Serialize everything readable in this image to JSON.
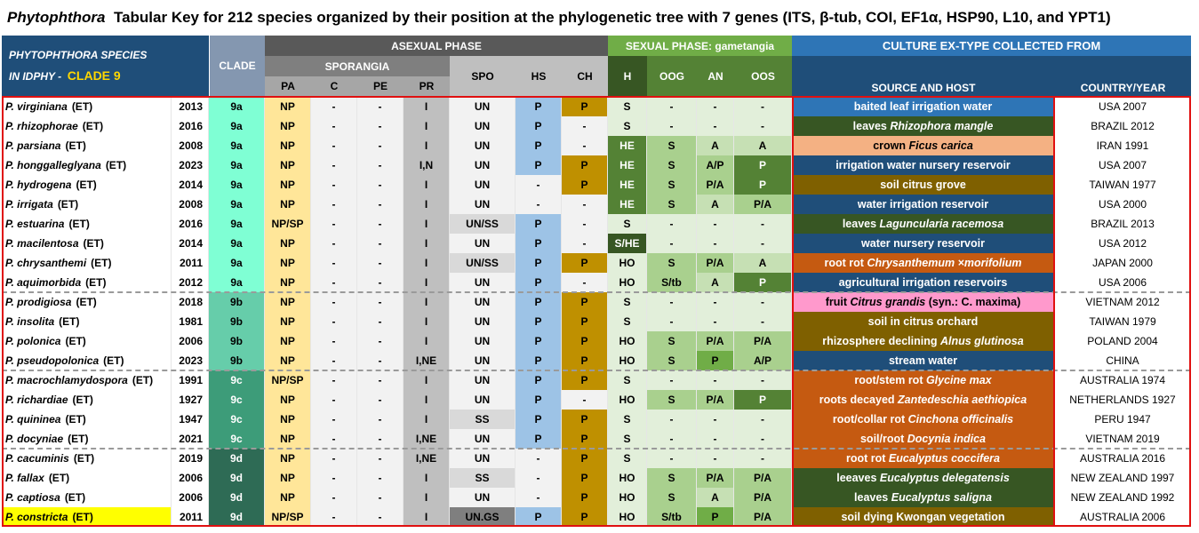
{
  "title": {
    "genus": "Phytophthora",
    "rest": "Tabular Key for 212 species organized by their position at the phylogenetic tree with 7 genes (ITS, β-tub, COI, EF1α, HSP90, L10, and YPT1)"
  },
  "headers": {
    "species_line1": "PHYTOPHTHORA  SPECIES",
    "species_line2a": "IN IDPHY -",
    "species_line2b": "CLADE 9",
    "clade": "CLADE",
    "asexual": "ASEXUAL PHASE",
    "sporangia": "SPORANGIA",
    "pa": "PA",
    "c": "C",
    "pe": "PE",
    "pr": "PR",
    "spo": "SPO",
    "hs": "HS",
    "ch": "CH",
    "sexual": "SEXUAL PHASE: gametangia",
    "h": "H",
    "oog": "OOG",
    "an": "AN",
    "oos": "OOS",
    "culture": "CULTURE EX-TYPE COLLECTED FROM",
    "source": "SOURCE AND HOST",
    "country": "COUNTRY/YEAR"
  },
  "colors": {
    "clade_9a": "#7fffd4",
    "clade_9b": "#66cdaa",
    "clade_9c": "#3cb371",
    "clade_9d": "#2e6b55",
    "hdr_blue": "#1f4e79",
    "hdr_green": "#8fbc5a",
    "hdr_dark": "#375623",
    "accent_red": "#e01010"
  },
  "rows": [
    {
      "sp": "P. virginiana",
      "et": "(ET)",
      "year": "2013",
      "clade": "9a",
      "pa": "NP",
      "c": "-",
      "pe": "-",
      "pr": "I",
      "spo": "UN",
      "hs": "P",
      "ch": "P",
      "h": "S",
      "oog": "-",
      "an": "-",
      "oos": "-",
      "src_a": "baited leaf irrigation water",
      "src_i": "",
      "src_b": "",
      "country": "USA 2007",
      "hl": false
    },
    {
      "sp": "P. rhizophorae",
      "et": "(ET)",
      "year": "2016",
      "clade": "9a",
      "pa": "NP",
      "c": "-",
      "pe": "-",
      "pr": "I",
      "spo": "UN",
      "hs": "P",
      "ch": "-",
      "h": "S",
      "oog": "-",
      "an": "-",
      "oos": "-",
      "src_a": "leaves ",
      "src_i": "Rhizophora mangle",
      "src_b": "",
      "country": "BRAZIL 2012",
      "hl": false
    },
    {
      "sp": "P. parsiana",
      "et": "(ET)",
      "year": "2008",
      "clade": "9a",
      "pa": "NP",
      "c": "-",
      "pe": "-",
      "pr": "I",
      "spo": "UN",
      "hs": "P",
      "ch": "-",
      "h": "HE",
      "oog": "S",
      "an": "A",
      "oos": "A",
      "src_a": "crown ",
      "src_i": "Ficus carica",
      "src_b": "",
      "country": "IRAN 1991",
      "hl": false
    },
    {
      "sp": "P. honggalleglyana",
      "et": "(ET)",
      "year": "2023",
      "clade": "9a",
      "pa": "NP",
      "c": "-",
      "pe": "-",
      "pr": "I,N",
      "spo": "UN",
      "hs": "P",
      "ch": "P",
      "h": "HE",
      "oog": "S",
      "an": "A/P",
      "oos": "P",
      "src_a": "irrigation water nursery reservoir",
      "src_i": "",
      "src_b": "",
      "country": "USA 2007",
      "hl": false
    },
    {
      "sp": "P. hydrogena",
      "et": "(ET)",
      "year": "2014",
      "clade": "9a",
      "pa": "NP",
      "c": "-",
      "pe": "-",
      "pr": "I",
      "spo": "UN",
      "hs": "-",
      "ch": "P",
      "h": "HE",
      "oog": "S",
      "an": "P/A",
      "oos": "P",
      "src_a": "soil citrus grove",
      "src_i": "",
      "src_b": "",
      "country": "TAIWAN 1977",
      "hl": false
    },
    {
      "sp": "P. irrigata",
      "et": "(ET)",
      "year": "2008",
      "clade": "9a",
      "pa": "NP",
      "c": "-",
      "pe": "-",
      "pr": "I",
      "spo": "UN",
      "hs": "-",
      "ch": "-",
      "h": "HE",
      "oog": "S",
      "an": "A",
      "oos": "P/A",
      "src_a": "water irrigation reservoir",
      "src_i": "",
      "src_b": "",
      "country": "USA 2000",
      "hl": false
    },
    {
      "sp": "P. estuarina",
      "et": "(ET)",
      "year": "2016",
      "clade": "9a",
      "pa": "NP/SP",
      "c": "-",
      "pe": "-",
      "pr": "I",
      "spo": "UN/SS",
      "hs": "P",
      "ch": "-",
      "h": "S",
      "oog": "-",
      "an": "-",
      "oos": "-",
      "src_a": "leaves ",
      "src_i": "Laguncularia racemosa",
      "src_b": "",
      "country": "BRAZIL 2013",
      "hl": false
    },
    {
      "sp": "P. macilentosa",
      "et": "(ET)",
      "year": "2014",
      "clade": "9a",
      "pa": "NP",
      "c": "-",
      "pe": "-",
      "pr": "I",
      "spo": "UN",
      "hs": "P",
      "ch": "-",
      "h": "S/HE",
      "oog": "-",
      "an": "-",
      "oos": "-",
      "src_a": "water nursery reservoir",
      "src_i": "",
      "src_b": "",
      "country": "USA 2012",
      "hl": false
    },
    {
      "sp": "P. chrysanthemi",
      "et": "(ET)",
      "year": "2011",
      "clade": "9a",
      "pa": "NP",
      "c": "-",
      "pe": "-",
      "pr": "I",
      "spo": "UN/SS",
      "hs": "P",
      "ch": "P",
      "h": "HO",
      "oog": "S",
      "an": "P/A",
      "oos": "A",
      "src_a": "root rot ",
      "src_i": "Chrysanthemum ×morifolium",
      "src_b": "",
      "country": "JAPAN 2000",
      "hl": false
    },
    {
      "sp": "P. aquimorbida",
      "et": "(ET)",
      "year": "2012",
      "clade": "9a",
      "pa": "NP",
      "c": "-",
      "pe": "-",
      "pr": "I",
      "spo": "UN",
      "hs": "P",
      "ch": "-",
      "h": "HO",
      "oog": "S/tb",
      "an": "A",
      "oos": "P",
      "src_a": "agricultural irrigation reservoirs",
      "src_i": "",
      "src_b": "",
      "country": "USA 2006",
      "hl": false
    },
    {
      "sp": "P. prodigiosa",
      "et": "(ET)",
      "year": "2018",
      "clade": "9b",
      "pa": "NP",
      "c": "-",
      "pe": "-",
      "pr": "I",
      "spo": "UN",
      "hs": "P",
      "ch": "P",
      "h": "S",
      "oog": "-",
      "an": "-",
      "oos": "-",
      "src_a": "fruit ",
      "src_i": "Citrus grandis",
      "src_b": " (syn.: C. maxima)",
      "country": "VIETNAM 2012",
      "hl": false
    },
    {
      "sp": "P. insolita",
      "et": "(ET)",
      "year": "1981",
      "clade": "9b",
      "pa": "NP",
      "c": "-",
      "pe": "-",
      "pr": "I",
      "spo": "UN",
      "hs": "P",
      "ch": "P",
      "h": "S",
      "oog": "-",
      "an": "-",
      "oos": "-",
      "src_a": "soil in citrus orchard",
      "src_i": "",
      "src_b": "",
      "country": "TAIWAN 1979",
      "hl": false
    },
    {
      "sp": "P. polonica",
      "et": "(ET)",
      "year": "2006",
      "clade": "9b",
      "pa": "NP",
      "c": "-",
      "pe": "-",
      "pr": "I",
      "spo": "UN",
      "hs": "P",
      "ch": "P",
      "h": "HO",
      "oog": "S",
      "an": "P/A",
      "oos": "P/A",
      "src_a": "rhizosphere declining ",
      "src_i": "Alnus glutinosa",
      "src_b": "",
      "country": "POLAND 2004",
      "hl": false
    },
    {
      "sp": "P. pseudopolonica",
      "et": "(ET)",
      "year": "2023",
      "clade": "9b",
      "pa": "NP",
      "c": "-",
      "pe": "-",
      "pr": "I,NE",
      "spo": "UN",
      "hs": "P",
      "ch": "P",
      "h": "HO",
      "oog": "S",
      "an": "P",
      "oos": "A/P",
      "src_a": "stream water",
      "src_i": "",
      "src_b": "",
      "country": "CHINA",
      "hl": false
    },
    {
      "sp": "P. macrochlamydospora",
      "et": "(ET)",
      "year": "1991",
      "clade": "9c",
      "pa": "NP/SP",
      "c": "-",
      "pe": "-",
      "pr": "I",
      "spo": "UN",
      "hs": "P",
      "ch": "P",
      "h": "S",
      "oog": "-",
      "an": "-",
      "oos": "-",
      "src_a": "root/stem rot ",
      "src_i": "Glycine max",
      "src_b": "",
      "country": "AUSTRALIA 1974",
      "hl": false
    },
    {
      "sp": "P. richardiae",
      "et": "(ET)",
      "year": "1927",
      "clade": "9c",
      "pa": "NP",
      "c": "-",
      "pe": "-",
      "pr": "I",
      "spo": "UN",
      "hs": "P",
      "ch": "-",
      "h": "HO",
      "oog": "S",
      "an": "P/A",
      "oos": "P",
      "src_a": "roots decayed ",
      "src_i": "Zantedeschia aethiopica",
      "src_b": "",
      "country": "NETHERLANDS 1927",
      "hl": false
    },
    {
      "sp": "P. quininea",
      "et": "(ET)",
      "year": "1947",
      "clade": "9c",
      "pa": "NP",
      "c": "-",
      "pe": "-",
      "pr": "I",
      "spo": "SS",
      "hs": "P",
      "ch": "P",
      "h": "S",
      "oog": "-",
      "an": "-",
      "oos": "-",
      "src_a": "root/collar rot ",
      "src_i": "Cinchona officinalis",
      "src_b": "",
      "country": "PERU 1947",
      "hl": false
    },
    {
      "sp": "P. docyniae",
      "et": "(ET)",
      "year": "2021",
      "clade": "9c",
      "pa": "NP",
      "c": "-",
      "pe": "-",
      "pr": "I,NE",
      "spo": "UN",
      "hs": "P",
      "ch": "P",
      "h": "S",
      "oog": "-",
      "an": "-",
      "oos": "-",
      "src_a": "soil/root ",
      "src_i": "Docynia indica",
      "src_b": "",
      "country": "VIETNAM 2019",
      "hl": false
    },
    {
      "sp": "P. cacuminis",
      "et": "(ET)",
      "year": "2019",
      "clade": "9d",
      "pa": "NP",
      "c": "-",
      "pe": "-",
      "pr": "I,NE",
      "spo": "UN",
      "hs": "-",
      "ch": "P",
      "h": "S",
      "oog": "-",
      "an": "-",
      "oos": "-",
      "src_a": "root rot ",
      "src_i": "Eucalyptus coccifera",
      "src_b": "",
      "country": "AUSTRALIA 2016",
      "hl": false
    },
    {
      "sp": "P. fallax",
      "et": "(ET)",
      "year": "2006",
      "clade": "9d",
      "pa": "NP",
      "c": "-",
      "pe": "-",
      "pr": "I",
      "spo": "SS",
      "hs": "-",
      "ch": "P",
      "h": "HO",
      "oog": "S",
      "an": "P/A",
      "oos": "P/A",
      "src_a": "leeaves ",
      "src_i": "Eucalyptus delegatensis",
      "src_b": "",
      "country": "NEW ZEALAND 1997",
      "hl": false
    },
    {
      "sp": "P. captiosa",
      "et": "(ET)",
      "year": "2006",
      "clade": "9d",
      "pa": "NP",
      "c": "-",
      "pe": "-",
      "pr": "I",
      "spo": "UN",
      "hs": "-",
      "ch": "P",
      "h": "HO",
      "oog": "S",
      "an": "A",
      "oos": "P/A",
      "src_a": "leaves ",
      "src_i": "Eucalyptus saligna",
      "src_b": "",
      "country": "NEW ZEALAND 1992",
      "hl": false
    },
    {
      "sp": "P. constricta",
      "et": "(ET)",
      "year": "2011",
      "clade": "9d",
      "pa": "NP/SP",
      "c": "-",
      "pe": "-",
      "pr": "I",
      "spo": "UN.GS",
      "hs": "P",
      "ch": "P",
      "h": "HO",
      "oog": "S/tb",
      "an": "P",
      "oos": "P/A",
      "src_a": "soil dying Kwongan vegetation",
      "src_i": "",
      "src_b": "",
      "country": "AUSTRALIA 2006",
      "hl": true
    }
  ]
}
